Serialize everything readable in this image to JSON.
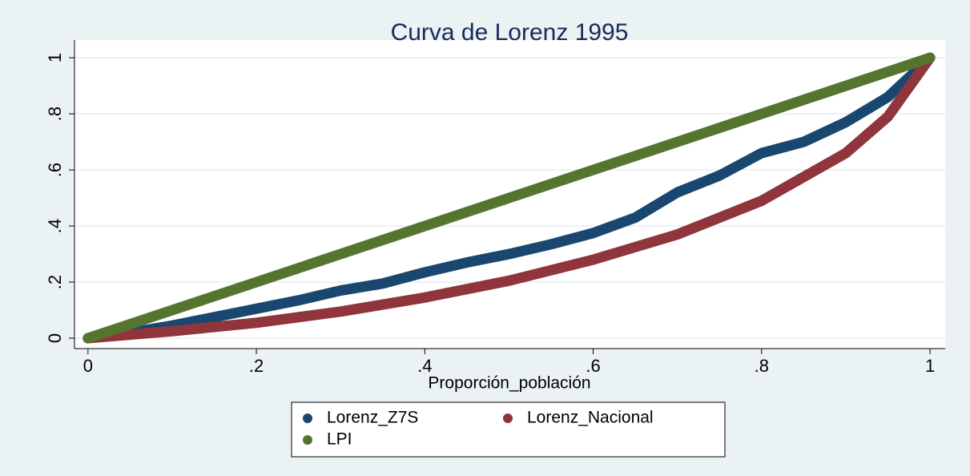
{
  "chart_data": {
    "type": "line",
    "title": "Curva de Lorenz 1995",
    "x_label": "Proporción_población",
    "series": [
      {
        "name": "Lorenz_Z7S",
        "color": "#1a476f",
        "x": [
          0,
          0.05,
          0.1,
          0.15,
          0.2,
          0.25,
          0.3,
          0.35,
          0.4,
          0.45,
          0.5,
          0.55,
          0.6,
          0.65,
          0.7,
          0.75,
          0.8,
          0.85,
          0.9,
          0.95,
          1
        ],
        "values": [
          0,
          0.02,
          0.045,
          0.075,
          0.105,
          0.135,
          0.17,
          0.195,
          0.235,
          0.27,
          0.3,
          0.335,
          0.375,
          0.43,
          0.52,
          0.58,
          0.66,
          0.7,
          0.77,
          0.86,
          1
        ]
      },
      {
        "name": "Lorenz_Nacional",
        "color": "#90353b",
        "x": [
          0,
          0.1,
          0.2,
          0.3,
          0.4,
          0.5,
          0.6,
          0.7,
          0.8,
          0.9,
          0.95,
          1
        ],
        "values": [
          0,
          0.025,
          0.055,
          0.095,
          0.145,
          0.205,
          0.28,
          0.37,
          0.49,
          0.66,
          0.79,
          1
        ]
      },
      {
        "name": "LPI",
        "color": "#55752f",
        "x": [
          0,
          1
        ],
        "values": [
          0,
          1
        ]
      }
    ],
    "xlim": [
      -0.016,
      1.018
    ],
    "ylim": [
      -0.037,
      1.063
    ],
    "xticks": [
      0,
      {
        "value": 0.2,
        "label": ".2"
      },
      {
        "value": 0.4,
        "label": ".4"
      },
      {
        "value": 0.6,
        "label": ".6"
      },
      {
        "value": 0.8,
        "label": ".8"
      },
      1
    ],
    "yticks": [
      0,
      {
        "value": 0.2,
        "label": ".2"
      },
      {
        "value": 0.4,
        "label": ".4"
      },
      {
        "value": 0.6,
        "label": ".6"
      },
      {
        "value": 0.8,
        "label": ".8"
      },
      1
    ],
    "grid": true
  }
}
